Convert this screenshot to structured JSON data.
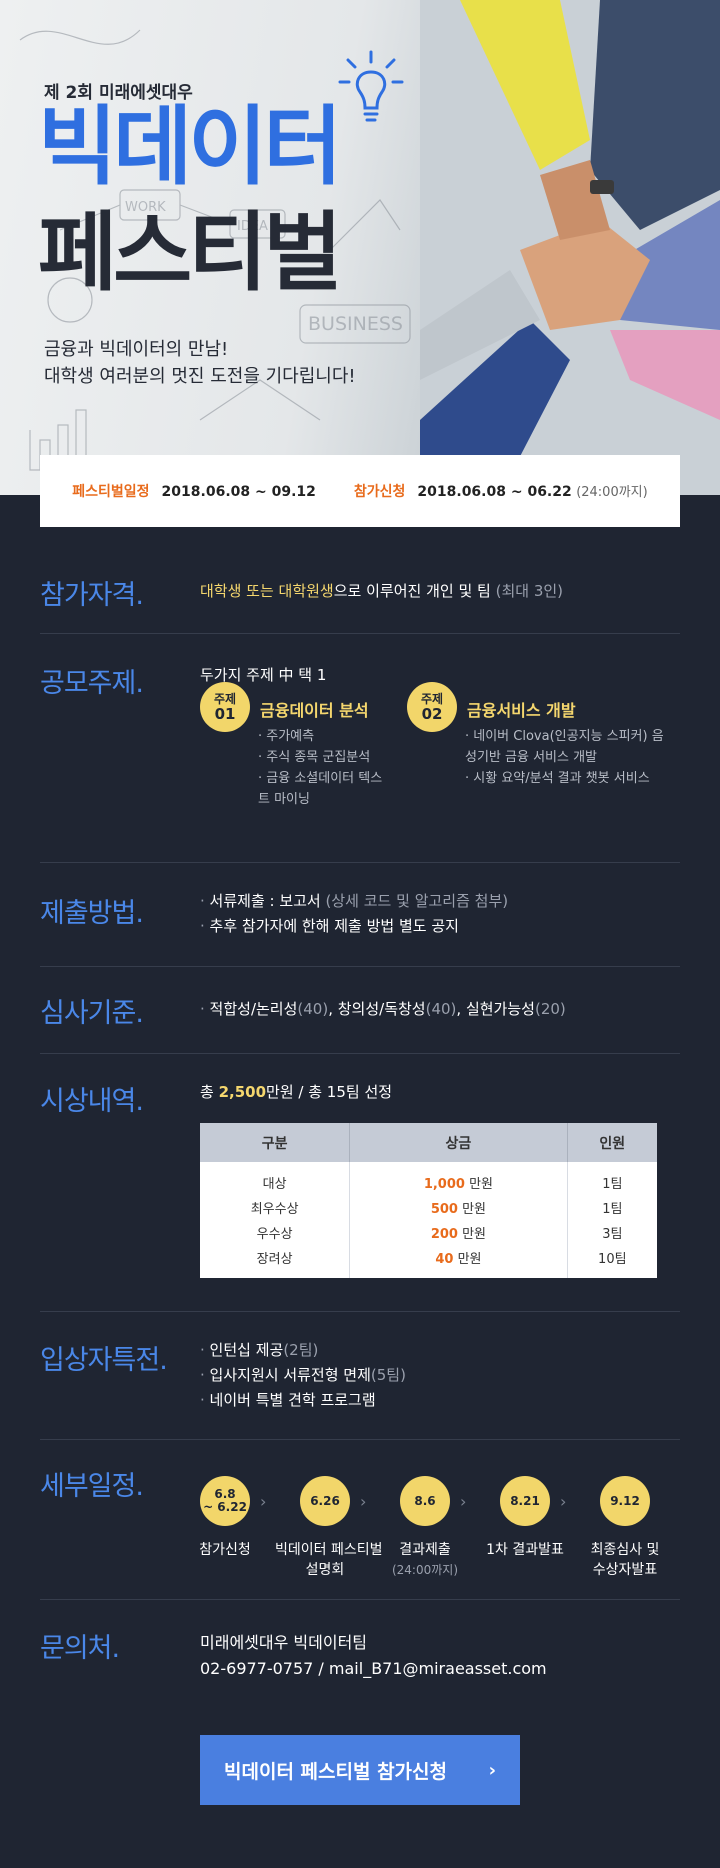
{
  "hero": {
    "kicker": "제 2회 미래에셋대우",
    "title_line1": "빅데이터",
    "title_line2": "페스티벌",
    "sub_line1": "금융과 빅데이터의 만남!",
    "sub_line2": "대학생 여러분의 멋진 도전을 기다립니다!",
    "sketch_words": [
      "WORK",
      "IDEA",
      "BUSINESS"
    ]
  },
  "infobar": {
    "festival_label": "페스티벌일정",
    "festival_dates": "2018.06.08 ~ 09.12",
    "apply_label": "참가신청",
    "apply_dates": "2018.06.08 ~ 06.22",
    "apply_note": "(24:00까지)"
  },
  "eligibility": {
    "heading": "참가자격.",
    "highlight": "대학생 또는 대학원생",
    "rest": "으로 이루어진 개인 및 팀",
    "note": "(최대 3인)"
  },
  "topics": {
    "heading": "공모주제.",
    "intro": "두가지 주제 中 택 1",
    "items": [
      {
        "badge_top": "주제",
        "badge_num": "01",
        "title": "금융데이터 분석",
        "points": [
          "주가예측",
          "주식 종목 군집분석",
          "금융 소셜데이터 텍스트 마이닝"
        ]
      },
      {
        "badge_top": "주제",
        "badge_num": "02",
        "title": "금융서비스 개발",
        "points": [
          "네이버 Clova(인공지능 스피커) 음성기반 금융 서비스 개발",
          "시황 요약/분석 결과 챗봇 서비스"
        ]
      }
    ]
  },
  "submission": {
    "heading": "제출방법.",
    "line1_main": "서류제출 : 보고서",
    "line1_note": "(상세 코드 및 알고리즘 첨부)",
    "line2": "추후 참가자에 한해 제출 방법 별도 공지"
  },
  "criteria": {
    "heading": "심사기준.",
    "items": [
      {
        "name": "적합성/논리성",
        "weight": "(40)"
      },
      {
        "name": "창의성/독창성",
        "weight": "(40)"
      },
      {
        "name": "실현가능성",
        "weight": "(20)"
      }
    ]
  },
  "awards": {
    "heading": "시상내역.",
    "summary_prefix": "총 ",
    "summary_amount": "2,500",
    "summary_suffix": "만원 / 총 15팀 선정",
    "columns": [
      "구분",
      "상금",
      "인원"
    ],
    "rows": [
      {
        "prize": "대상",
        "amount": "1,000",
        "unit": " 만원",
        "count": "1팀"
      },
      {
        "prize": "최우수상",
        "amount": "500",
        "unit": " 만원",
        "count": "1팀"
      },
      {
        "prize": "우수상",
        "amount": "200",
        "unit": " 만원",
        "count": "3팀"
      },
      {
        "prize": "장려상",
        "amount": "40",
        "unit": " 만원",
        "count": "10팀"
      }
    ]
  },
  "benefits": {
    "heading": "입상자특전.",
    "items": [
      {
        "text": "인턴십 제공",
        "note": "(2팀)"
      },
      {
        "text": "입사지원시 서류전형 면제",
        "note": "(5팀)"
      },
      {
        "text": "네이버 특별 견학 프로그램",
        "note": ""
      }
    ]
  },
  "schedule": {
    "heading": "세부일정.",
    "steps": [
      {
        "date": "6.8\n~ 6.22",
        "label": "참가신청",
        "note": ""
      },
      {
        "date": "6.26",
        "label": "빅데이터 페스티벌\n설명회",
        "note": ""
      },
      {
        "date": "8.6",
        "label": "결과제출",
        "note": "(24:00까지)"
      },
      {
        "date": "8.21",
        "label": "1차 결과발표",
        "note": ""
      },
      {
        "date": "9.12",
        "label": "최종심사 및\n수상자발표",
        "note": ""
      }
    ]
  },
  "contact": {
    "heading": "문의처.",
    "team": "미래에셋대우 빅데이터팀",
    "info": "02-6977-0757 / mail_B71@miraeasset.com"
  },
  "cta": {
    "label": "빅데이터 페스티벌 참가신청",
    "arrow": "›"
  },
  "colors": {
    "background": "#1f2532",
    "heading_blue": "#4a87e8",
    "accent_yellow": "#f5d76e",
    "accent_orange": "#e86b1c",
    "cta_blue": "#4a7fe0"
  }
}
